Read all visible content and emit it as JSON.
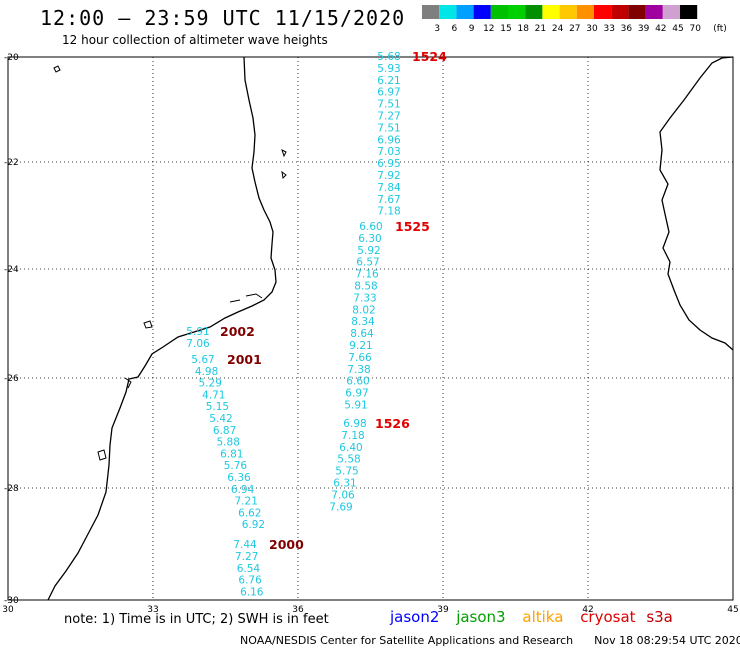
{
  "header": {
    "title": "12:00 – 23:59 UTC 11/15/2020",
    "subtitle": "12 hour collection of altimeter wave heights"
  },
  "legend": {
    "labels": [
      "3",
      "6",
      "9",
      "12",
      "15",
      "18",
      "21",
      "24",
      "27",
      "30",
      "33",
      "36",
      "39",
      "42",
      "45",
      "70"
    ],
    "unit": "(ft)",
    "colors": [
      "#7f7f7f",
      "#00e5e5",
      "#00a0ff",
      "#0000ff",
      "#00c000",
      "#00d000",
      "#009000",
      "#ffff00",
      "#ffc800",
      "#ff9000",
      "#ff0000",
      "#c00000",
      "#800000",
      "#a000a0",
      "#d0a0d0",
      "#000000"
    ]
  },
  "axes": {
    "x_ticks": [
      "30",
      "33",
      "36",
      "39",
      "42",
      "45"
    ],
    "y_ticks": [
      "-20",
      "-22",
      "-24",
      "-26",
      "-28",
      "-30"
    ]
  },
  "tracks": [
    {
      "label": "1524",
      "color": "#e00000",
      "values": [
        "5.68",
        "5.93",
        "6.21",
        "6.97",
        "7.51",
        "7.27",
        "7.51",
        "6.96",
        "7.03",
        "6.95",
        "7.92",
        "7.84",
        "7.67",
        "7.18"
      ]
    },
    {
      "label": "1525",
      "color": "#e00000",
      "values": [
        "6.60",
        "6.30",
        "5.92",
        "6.57",
        "7.16",
        "8.58",
        "7.33",
        "8.02",
        "8.34",
        "8.64",
        "9.21",
        "7.66",
        "7.38",
        "6.60",
        "6.97",
        "5.91"
      ]
    },
    {
      "label": "1526",
      "color": "#e00000",
      "values": [
        "6.98",
        "7.18",
        "6.40",
        "5.58",
        "5.75",
        "6.31",
        "7.06",
        "7.69"
      ]
    },
    {
      "label": "2002",
      "color": "#800000",
      "values": [
        "5.91",
        "7.06"
      ]
    },
    {
      "label": "2001",
      "color": "#800000",
      "values": [
        "5.67",
        "4.98",
        "5.29",
        "4.71",
        "5.15",
        "5.42",
        "6.87",
        "5.88",
        "6.81",
        "5.76",
        "6.36",
        "6.94",
        "7.21",
        "6.62",
        "6.92"
      ]
    },
    {
      "label": "2000",
      "color": "#800000",
      "values": [
        "7.44",
        "7.27",
        "6.54",
        "6.76",
        "6.16"
      ]
    }
  ],
  "footer": {
    "note": "note:  1) Time is in UTC;  2) SWH is in feet",
    "satellites": [
      {
        "name": "jason2",
        "color": "#0000ff"
      },
      {
        "name": "jason3",
        "color": "#00a000"
      },
      {
        "name": "altika",
        "color": "#ffa000"
      },
      {
        "name": "cryosat",
        "color": "#e00000"
      },
      {
        "name": "s3a",
        "color": "#c00000"
      }
    ],
    "credit": "NOAA/NESDIS Center for Satellite Applications and Research      Nov 18 08:29:54 UTC 2020"
  }
}
